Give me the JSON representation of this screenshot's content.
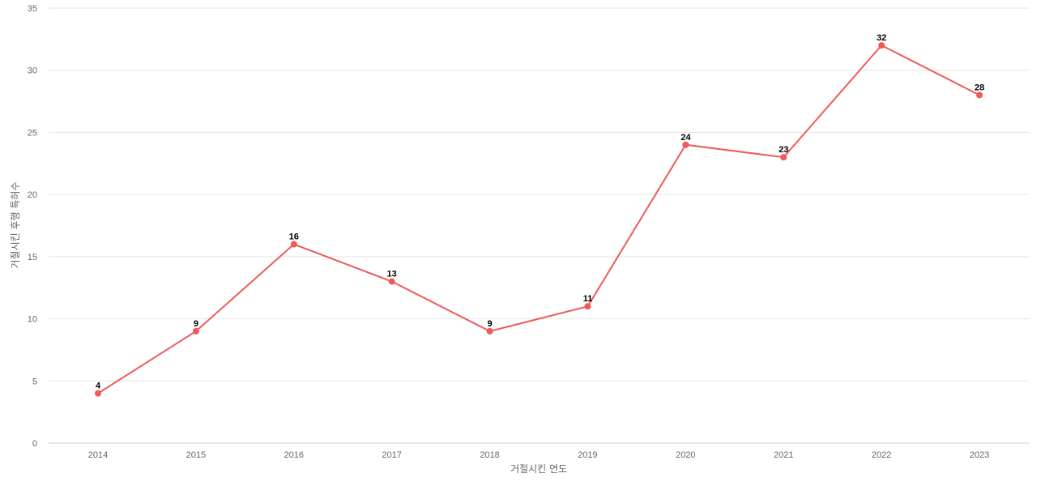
{
  "chart_data": {
    "type": "line",
    "title": "",
    "xlabel": "거절시킨 연도",
    "ylabel": "거절시킨 후행 특허수",
    "categories": [
      "2014",
      "2015",
      "2016",
      "2017",
      "2018",
      "2019",
      "2020",
      "2021",
      "2022",
      "2023"
    ],
    "series": [
      {
        "values": [
          4,
          9,
          16,
          13,
          9,
          11,
          24,
          23,
          32,
          28
        ],
        "color": "#ee5a5a"
      }
    ],
    "ylim": [
      0,
      35
    ],
    "yticks": [
      0,
      5,
      10,
      15,
      20,
      25,
      30,
      35
    ],
    "grid": true,
    "legend": "none",
    "data_labels": true
  }
}
